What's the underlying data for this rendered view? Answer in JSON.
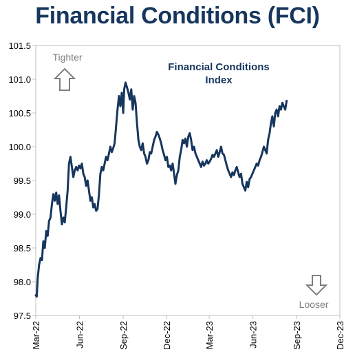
{
  "chart_data": {
    "type": "line",
    "title": "Financial Conditions (FCI)",
    "series_label": [
      "Financial Conditions",
      "Index"
    ],
    "annotations": {
      "up": "Tighter",
      "down": "Looser"
    },
    "ylim": [
      97.5,
      101.5
    ],
    "yticks": [
      97.5,
      98.0,
      98.5,
      99.0,
      99.5,
      100.0,
      100.5,
      101.0,
      101.5
    ],
    "ytick_labels": [
      "97.5",
      "98.0",
      "98.5",
      "99.0",
      "99.5",
      "100.0",
      "100.5",
      "101.0",
      "101.5"
    ],
    "xlim": [
      "2022-03-01",
      "2023-12-01"
    ],
    "xticks": [
      "2022-03-01",
      "2022-06-01",
      "2022-09-01",
      "2022-12-01",
      "2023-03-01",
      "2023-06-01",
      "2023-09-01",
      "2023-12-01"
    ],
    "xtick_labels": [
      "Mar-22",
      "Jun-22",
      "Sep-22",
      "Dec-22",
      "Mar-23",
      "Jun-23",
      "Sep-23",
      "Dec-23"
    ],
    "grid": false,
    "colors": {
      "line": "#17365d",
      "title": "#17365d",
      "arrow": "#7f7f7f",
      "frame": "#bfbfbf"
    },
    "series": [
      {
        "values": [
          [
            "2022-03-01",
            97.8
          ],
          [
            "2022-03-03",
            97.78
          ],
          [
            "2022-03-05",
            98.05
          ],
          [
            "2022-03-08",
            98.25
          ],
          [
            "2022-03-11",
            98.35
          ],
          [
            "2022-03-14",
            98.32
          ],
          [
            "2022-03-17",
            98.6
          ],
          [
            "2022-03-20",
            98.5
          ],
          [
            "2022-03-23",
            98.75
          ],
          [
            "2022-03-26",
            98.68
          ],
          [
            "2022-03-29",
            98.9
          ],
          [
            "2022-04-01",
            98.95
          ],
          [
            "2022-04-04",
            99.15
          ],
          [
            "2022-04-07",
            99.3
          ],
          [
            "2022-04-10",
            99.2
          ],
          [
            "2022-04-13",
            99.32
          ],
          [
            "2022-04-16",
            99.15
          ],
          [
            "2022-04-19",
            99.28
          ],
          [
            "2022-04-22",
            99.05
          ],
          [
            "2022-04-25",
            98.85
          ],
          [
            "2022-04-28",
            98.95
          ],
          [
            "2022-05-01",
            98.88
          ],
          [
            "2022-05-04",
            99.1
          ],
          [
            "2022-05-07",
            99.35
          ],
          [
            "2022-05-10",
            99.75
          ],
          [
            "2022-05-13",
            99.85
          ],
          [
            "2022-05-16",
            99.7
          ],
          [
            "2022-05-19",
            99.55
          ],
          [
            "2022-05-22",
            99.65
          ],
          [
            "2022-05-25",
            99.7
          ],
          [
            "2022-05-28",
            99.65
          ],
          [
            "2022-05-31",
            99.72
          ],
          [
            "2022-06-03",
            99.68
          ],
          [
            "2022-06-06",
            99.75
          ],
          [
            "2022-06-09",
            99.6
          ],
          [
            "2022-06-12",
            99.55
          ],
          [
            "2022-06-15",
            99.42
          ],
          [
            "2022-06-18",
            99.5
          ],
          [
            "2022-06-21",
            99.35
          ],
          [
            "2022-06-24",
            99.2
          ],
          [
            "2022-06-27",
            99.25
          ],
          [
            "2022-06-30",
            99.1
          ],
          [
            "2022-07-03",
            99.15
          ],
          [
            "2022-07-06",
            99.05
          ],
          [
            "2022-07-09",
            99.08
          ],
          [
            "2022-07-12",
            99.3
          ],
          [
            "2022-07-15",
            99.6
          ],
          [
            "2022-07-18",
            99.7
          ],
          [
            "2022-07-21",
            99.65
          ],
          [
            "2022-07-24",
            99.75
          ],
          [
            "2022-07-27",
            99.85
          ],
          [
            "2022-07-30",
            99.8
          ],
          [
            "2022-08-02",
            99.9
          ],
          [
            "2022-08-05",
            100.0
          ],
          [
            "2022-08-08",
            99.92
          ],
          [
            "2022-08-11",
            99.98
          ],
          [
            "2022-08-14",
            100.05
          ],
          [
            "2022-08-17",
            100.3
          ],
          [
            "2022-08-20",
            100.55
          ],
          [
            "2022-08-23",
            100.75
          ],
          [
            "2022-08-26",
            100.6
          ],
          [
            "2022-08-29",
            100.8
          ],
          [
            "2022-09-01",
            100.5
          ],
          [
            "2022-09-03",
            100.85
          ],
          [
            "2022-09-06",
            100.95
          ],
          [
            "2022-09-09",
            100.88
          ],
          [
            "2022-09-12",
            100.8
          ],
          [
            "2022-09-15",
            100.7
          ],
          [
            "2022-09-18",
            100.85
          ],
          [
            "2022-09-21",
            100.55
          ],
          [
            "2022-09-24",
            100.75
          ],
          [
            "2022-09-27",
            100.65
          ],
          [
            "2022-09-30",
            100.35
          ],
          [
            "2022-10-03",
            100.1
          ],
          [
            "2022-10-06",
            100.0
          ],
          [
            "2022-10-09",
            99.95
          ],
          [
            "2022-10-12",
            100.05
          ],
          [
            "2022-10-15",
            99.9
          ],
          [
            "2022-10-18",
            99.85
          ],
          [
            "2022-10-21",
            99.75
          ],
          [
            "2022-10-24",
            99.8
          ],
          [
            "2022-10-27",
            99.92
          ],
          [
            "2022-10-30",
            99.9
          ],
          [
            "2022-11-02",
            100.0
          ],
          [
            "2022-11-05",
            100.1
          ],
          [
            "2022-11-08",
            100.15
          ],
          [
            "2022-11-11",
            100.22
          ],
          [
            "2022-11-14",
            100.18
          ],
          [
            "2022-11-17",
            100.12
          ],
          [
            "2022-11-20",
            100.05
          ],
          [
            "2022-11-23",
            99.95
          ],
          [
            "2022-11-26",
            99.88
          ],
          [
            "2022-11-29",
            99.8
          ],
          [
            "2022-12-02",
            99.85
          ],
          [
            "2022-12-05",
            99.7
          ],
          [
            "2022-12-08",
            99.72
          ],
          [
            "2022-12-11",
            99.65
          ],
          [
            "2022-12-14",
            99.75
          ],
          [
            "2022-12-17",
            99.6
          ],
          [
            "2022-12-20",
            99.45
          ],
          [
            "2022-12-23",
            99.58
          ],
          [
            "2022-12-26",
            99.65
          ],
          [
            "2022-12-29",
            99.85
          ],
          [
            "2023-01-01",
            99.95
          ],
          [
            "2023-01-04",
            100.1
          ],
          [
            "2023-01-07",
            100.05
          ],
          [
            "2023-01-10",
            100.12
          ],
          [
            "2023-01-13",
            100.0
          ],
          [
            "2023-01-16",
            100.15
          ],
          [
            "2023-01-19",
            100.2
          ],
          [
            "2023-01-22",
            100.1
          ],
          [
            "2023-01-25",
            99.95
          ],
          [
            "2023-01-28",
            100.0
          ],
          [
            "2023-01-31",
            99.9
          ],
          [
            "2023-02-03",
            99.85
          ],
          [
            "2023-02-06",
            99.8
          ],
          [
            "2023-02-09",
            99.75
          ],
          [
            "2023-02-12",
            99.7
          ],
          [
            "2023-02-15",
            99.78
          ],
          [
            "2023-02-18",
            99.72
          ],
          [
            "2023-02-21",
            99.75
          ],
          [
            "2023-02-24",
            99.8
          ],
          [
            "2023-02-27",
            99.75
          ],
          [
            "2023-03-02",
            99.78
          ],
          [
            "2023-03-05",
            99.82
          ],
          [
            "2023-03-08",
            99.88
          ],
          [
            "2023-03-11",
            99.85
          ],
          [
            "2023-03-14",
            99.9
          ],
          [
            "2023-03-17",
            99.95
          ],
          [
            "2023-03-20",
            99.85
          ],
          [
            "2023-03-23",
            99.92
          ],
          [
            "2023-03-26",
            100.0
          ],
          [
            "2023-03-29",
            99.9
          ],
          [
            "2023-04-01",
            99.88
          ],
          [
            "2023-04-04",
            99.8
          ],
          [
            "2023-04-07",
            99.72
          ],
          [
            "2023-04-10",
            99.65
          ],
          [
            "2023-04-13",
            99.6
          ],
          [
            "2023-04-16",
            99.55
          ],
          [
            "2023-04-19",
            99.62
          ],
          [
            "2023-04-22",
            99.58
          ],
          [
            "2023-04-25",
            99.65
          ],
          [
            "2023-04-28",
            99.7
          ],
          [
            "2023-05-01",
            99.62
          ],
          [
            "2023-05-04",
            99.55
          ],
          [
            "2023-05-07",
            99.6
          ],
          [
            "2023-05-10",
            99.45
          ],
          [
            "2023-05-13",
            99.4
          ],
          [
            "2023-05-16",
            99.35
          ],
          [
            "2023-05-19",
            99.48
          ],
          [
            "2023-05-22",
            99.4
          ],
          [
            "2023-05-25",
            99.52
          ],
          [
            "2023-05-28",
            99.55
          ],
          [
            "2023-05-31",
            99.6
          ],
          [
            "2023-06-03",
            99.65
          ],
          [
            "2023-06-06",
            99.7
          ],
          [
            "2023-06-09",
            99.75
          ],
          [
            "2023-06-12",
            99.72
          ],
          [
            "2023-06-15",
            99.8
          ],
          [
            "2023-06-18",
            99.85
          ],
          [
            "2023-06-21",
            99.92
          ],
          [
            "2023-06-24",
            100.0
          ],
          [
            "2023-06-27",
            99.95
          ],
          [
            "2023-06-30",
            99.9
          ],
          [
            "2023-07-03",
            100.1
          ],
          [
            "2023-07-06",
            100.2
          ],
          [
            "2023-07-09",
            100.35
          ],
          [
            "2023-07-12",
            100.45
          ],
          [
            "2023-07-15",
            100.3
          ],
          [
            "2023-07-18",
            100.5
          ],
          [
            "2023-07-21",
            100.55
          ],
          [
            "2023-07-24",
            100.45
          ],
          [
            "2023-07-27",
            100.6
          ],
          [
            "2023-07-30",
            100.55
          ],
          [
            "2023-08-02",
            100.65
          ],
          [
            "2023-08-05",
            100.6
          ],
          [
            "2023-08-08",
            100.55
          ],
          [
            "2023-08-11",
            100.68
          ]
        ]
      }
    ]
  }
}
